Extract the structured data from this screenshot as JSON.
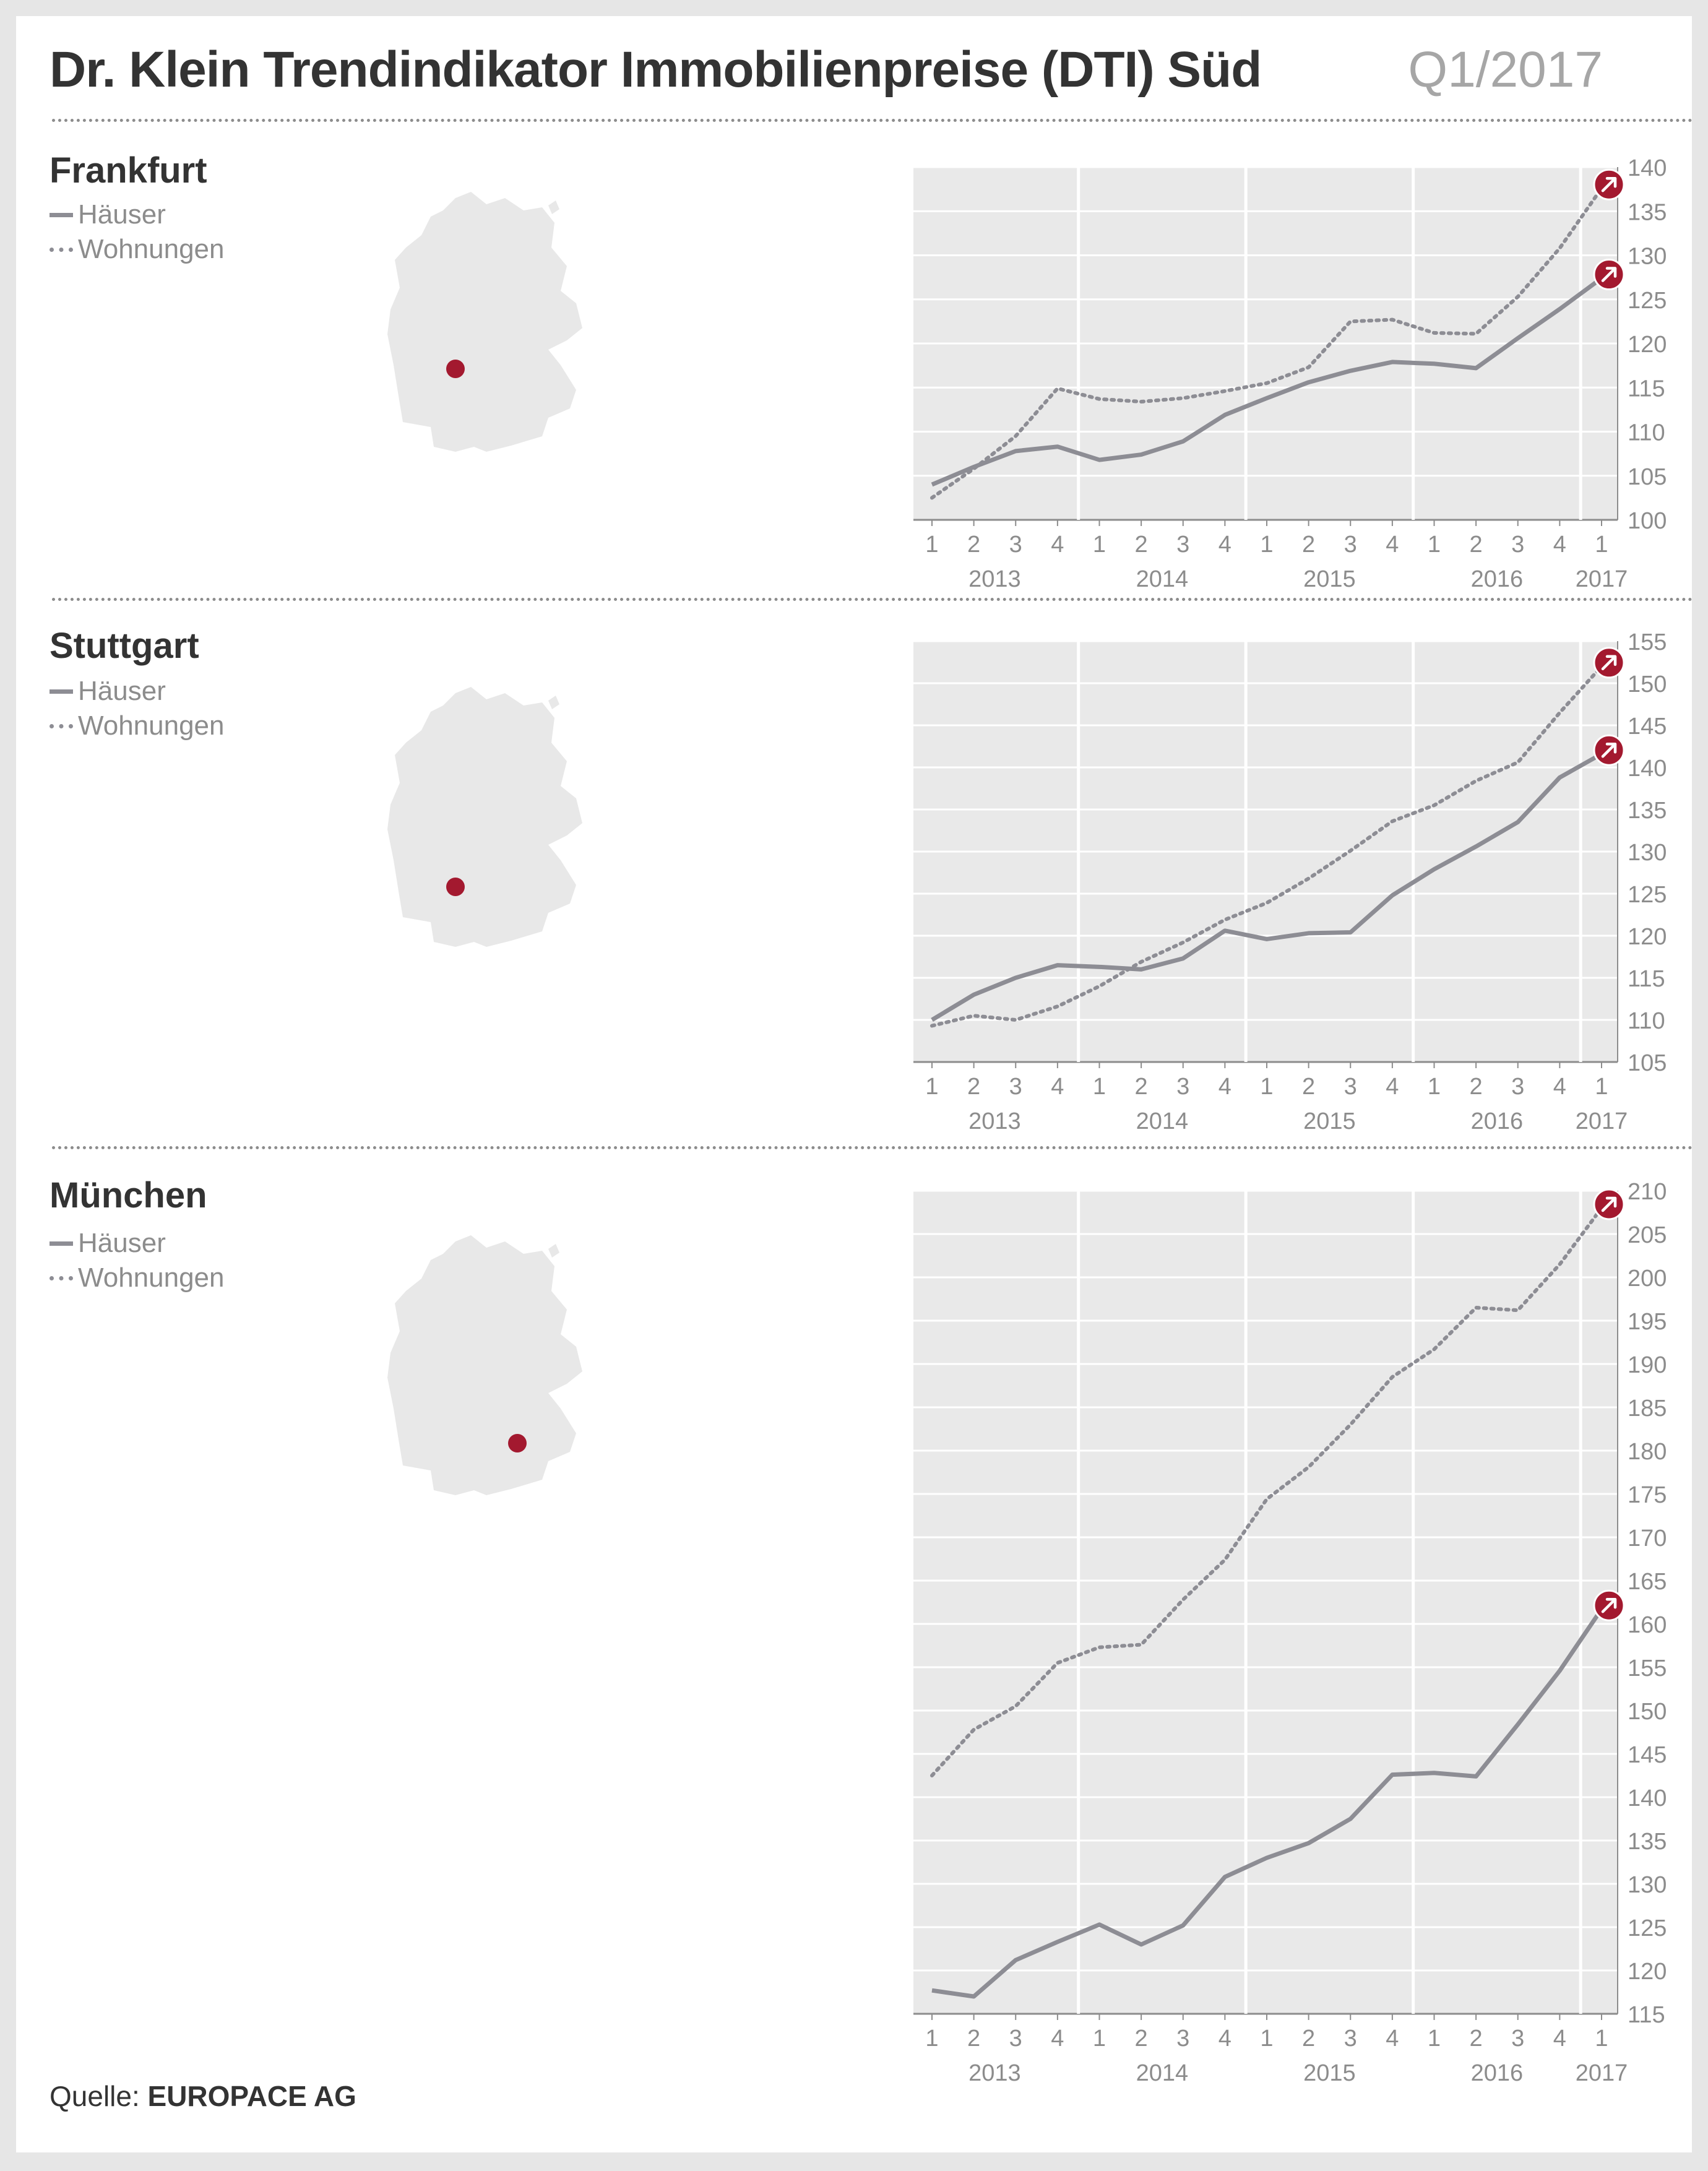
{
  "title": "Dr. Klein Trendindikator Immobilienpreise (DTI) Süd",
  "period": "Q1/2017",
  "legend": {
    "houses": "Häuser",
    "apartments": "Wohnungen"
  },
  "source": {
    "label": "Quelle:",
    "value": "EUROPACE AG"
  },
  "colors": {
    "line": "#8d8d94",
    "marker": "#a3192f",
    "plot_bg": "#e9e9e9",
    "map": "#e8e8e8"
  },
  "icons": [
    "map-of-germany",
    "location-dot",
    "arrow-up-right-icon"
  ],
  "chart_data": [
    {
      "type": "line",
      "title": "Frankfurt",
      "categories": [
        "1",
        "2",
        "3",
        "4",
        "1",
        "2",
        "3",
        "4",
        "1",
        "2",
        "3",
        "4",
        "1",
        "2",
        "3",
        "4",
        "1"
      ],
      "years": [
        "2013",
        "2014",
        "2015",
        "2016",
        "2017"
      ],
      "ylim": [
        100,
        140
      ],
      "yticks": [
        100,
        105,
        110,
        115,
        120,
        125,
        130,
        135,
        140
      ],
      "grid": true,
      "series": [
        {
          "name": "Häuser",
          "style": "solid",
          "values": [
            104,
            106,
            107.8,
            108.3,
            106.8,
            107.4,
            108.9,
            111.9,
            113.8,
            115.6,
            116.9,
            117.9,
            117.7,
            117.2,
            120.6,
            123.9,
            127.4
          ]
        },
        {
          "name": "Wohnungen",
          "style": "dotted",
          "values": [
            102.5,
            105.8,
            109.5,
            114.9,
            113.7,
            113.4,
            113.8,
            114.6,
            115.5,
            117.3,
            122.5,
            122.7,
            121.2,
            121.1,
            125.3,
            130.8,
            137.6
          ]
        }
      ]
    },
    {
      "type": "line",
      "title": "Stuttgart",
      "categories": [
        "1",
        "2",
        "3",
        "4",
        "1",
        "2",
        "3",
        "4",
        "1",
        "2",
        "3",
        "4",
        "1",
        "2",
        "3",
        "4",
        "1"
      ],
      "years": [
        "2013",
        "2014",
        "2015",
        "2016",
        "2017"
      ],
      "ylim": [
        105,
        155
      ],
      "yticks": [
        105,
        110,
        115,
        120,
        125,
        130,
        135,
        140,
        145,
        150,
        155
      ],
      "grid": true,
      "series": [
        {
          "name": "Häuser",
          "style": "solid",
          "values": [
            110,
            113,
            115,
            116.5,
            116.3,
            116,
            117.3,
            120.6,
            119.6,
            120.3,
            120.4,
            124.8,
            127.9,
            130.6,
            133.5,
            138.8,
            141.6
          ]
        },
        {
          "name": "Wohnungen",
          "style": "dotted",
          "values": [
            109.3,
            110.5,
            110,
            111.6,
            114,
            116.9,
            119.2,
            121.9,
            123.9,
            126.8,
            130.1,
            133.6,
            135.5,
            138.4,
            140.6,
            146.5,
            152
          ]
        }
      ]
    },
    {
      "type": "line",
      "title": "München",
      "categories": [
        "1",
        "2",
        "3",
        "4",
        "1",
        "2",
        "3",
        "4",
        "1",
        "2",
        "3",
        "4",
        "1",
        "2",
        "3",
        "4",
        "1"
      ],
      "years": [
        "2013",
        "2014",
        "2015",
        "2016",
        "2017"
      ],
      "ylim": [
        115,
        210
      ],
      "yticks": [
        115,
        120,
        125,
        130,
        135,
        140,
        145,
        150,
        155,
        160,
        165,
        170,
        175,
        180,
        185,
        190,
        195,
        200,
        205,
        210
      ],
      "grid": true,
      "series": [
        {
          "name": "Häuser",
          "style": "solid",
          "values": [
            117.7,
            117,
            121.2,
            123.3,
            125.3,
            123,
            125.2,
            130.8,
            133,
            134.7,
            137.5,
            142.6,
            142.8,
            142.4,
            148.4,
            154.6,
            161.7
          ]
        },
        {
          "name": "Wohnungen",
          "style": "dotted",
          "values": [
            142.5,
            147.8,
            150.5,
            155.5,
            157.3,
            157.6,
            162.8,
            167.4,
            174.4,
            178.1,
            183,
            188.5,
            191.7,
            196.5,
            196.2,
            201.5,
            208
          ]
        }
      ]
    }
  ]
}
